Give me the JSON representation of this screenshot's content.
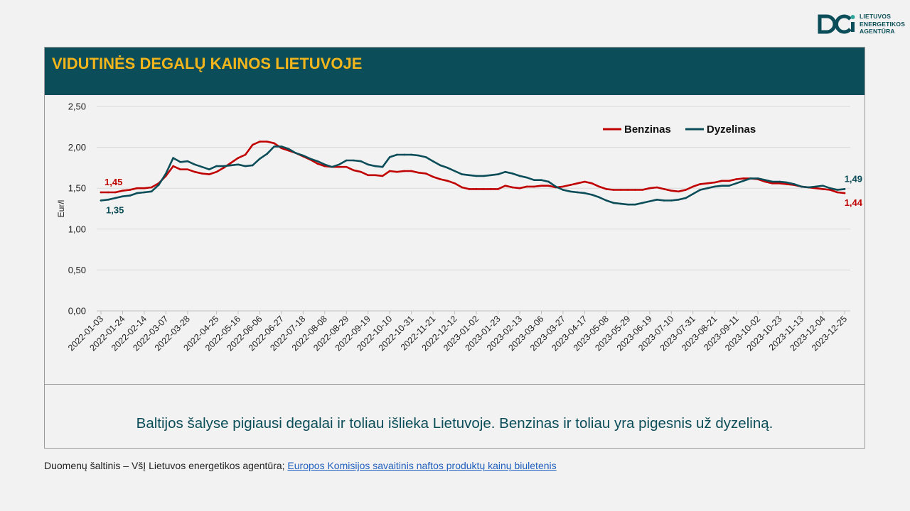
{
  "logo": {
    "lines": [
      "LIETUVOS",
      "ENERGETIKOS",
      "AGENTŪRA"
    ]
  },
  "header": {
    "title": "VIDUTINĖS DEGALŲ KAINOS LIETUVOJE"
  },
  "note": "Baltijos šalyse pigiausi degalai ir toliau išlieka Lietuvoje. Benzinas ir toliau yra pigesnis už dyzeliną.",
  "source": {
    "prefix": "Duomenų šaltinis – VšĮ Lietuvos energetikos agentūra; ",
    "link_text": "Europos Komisijos savaitinis naftos produktų kainų biuletenis"
  },
  "colors": {
    "benzinas": "#c00000",
    "dyzelinas": "#0b4d58",
    "header_bg": "#0b4d58",
    "title": "#f2b51c"
  },
  "chart_data": {
    "type": "line",
    "title": "",
    "xlabel": "",
    "ylabel": "Eur/l",
    "ylim": [
      0,
      2.5
    ],
    "yticks": [
      "0,00",
      "0,50",
      "1,00",
      "1,50",
      "2,00",
      "2,50"
    ],
    "x": [
      "2022-01-03",
      "2022-01-10",
      "2022-01-17",
      "2022-01-24",
      "2022-01-31",
      "2022-02-07",
      "2022-02-14",
      "2022-02-21",
      "2022-02-28",
      "2022-03-07",
      "2022-03-14",
      "2022-03-21",
      "2022-03-28",
      "2022-04-04",
      "2022-04-11",
      "2022-04-18",
      "2022-04-25",
      "2022-05-02",
      "2022-05-09",
      "2022-05-16",
      "2022-05-23",
      "2022-05-30",
      "2022-06-06",
      "2022-06-13",
      "2022-06-20",
      "2022-06-27",
      "2022-07-04",
      "2022-07-11",
      "2022-07-18",
      "2022-07-25",
      "2022-08-01",
      "2022-08-08",
      "2022-08-15",
      "2022-08-22",
      "2022-08-29",
      "2022-09-05",
      "2022-09-12",
      "2022-09-19",
      "2022-09-26",
      "2022-10-03",
      "2022-10-10",
      "2022-10-17",
      "2022-10-24",
      "2022-10-31",
      "2022-11-07",
      "2022-11-14",
      "2022-11-21",
      "2022-11-28",
      "2022-12-05",
      "2022-12-12",
      "2022-12-19",
      "2022-12-26",
      "2023-01-02",
      "2023-01-09",
      "2023-01-16",
      "2023-01-23",
      "2023-01-30",
      "2023-02-06",
      "2023-02-13",
      "2023-02-20",
      "2023-02-27",
      "2023-03-06",
      "2023-03-13",
      "2023-03-20",
      "2023-03-27",
      "2023-04-03",
      "2023-04-10",
      "2023-04-17",
      "2023-04-24",
      "2023-05-01",
      "2023-05-08",
      "2023-05-15",
      "2023-05-22",
      "2023-05-29",
      "2023-06-05",
      "2023-06-12",
      "2023-06-19",
      "2023-06-26",
      "2023-07-03",
      "2023-07-10",
      "2023-07-17",
      "2023-07-24",
      "2023-07-31",
      "2023-08-07",
      "2023-08-14",
      "2023-08-21",
      "2023-08-28",
      "2023-09-04",
      "2023-09-11",
      "2023-09-18",
      "2023-09-25",
      "2023-10-02",
      "2023-10-09",
      "2023-10-16",
      "2023-10-23",
      "2023-10-30",
      "2023-11-06",
      "2023-11-13",
      "2023-11-20",
      "2023-11-27",
      "2023-12-04",
      "2023-12-11",
      "2023-12-18",
      "2023-12-25"
    ],
    "xtick_labels": [
      "2022-01-03",
      "2022-01-24",
      "2022-02-14",
      "2022-03-07",
      "2022-03-28",
      "2022-04-25",
      "2022-05-16",
      "2022-06-06",
      "2022-06-27",
      "2022-07-18",
      "2022-08-08",
      "2022-08-29",
      "2022-09-19",
      "2022-10-10",
      "2022-10-31",
      "2022-11-21",
      "2022-12-12",
      "2023-01-02",
      "2023-01-23",
      "2023-02-13",
      "2023-03-06",
      "2023-03-27",
      "2023-04-17",
      "2023-05-08",
      "2023-05-29",
      "2023-06-19",
      "2023-07-10",
      "2023-07-31",
      "2023-08-21",
      "2023-09-11",
      "2023-10-02",
      "2023-10-23",
      "2023-11-13",
      "2023-12-04",
      "2023-12-25"
    ],
    "series": [
      {
        "name": "Benzinas",
        "color": "#c00000",
        "values": [
          1.45,
          1.45,
          1.45,
          1.47,
          1.48,
          1.5,
          1.5,
          1.51,
          1.56,
          1.65,
          1.77,
          1.73,
          1.73,
          1.7,
          1.68,
          1.67,
          1.7,
          1.75,
          1.81,
          1.87,
          1.91,
          2.03,
          2.07,
          2.07,
          2.05,
          1.99,
          1.96,
          1.93,
          1.89,
          1.85,
          1.8,
          1.77,
          1.76,
          1.76,
          1.76,
          1.72,
          1.7,
          1.66,
          1.66,
          1.65,
          1.71,
          1.7,
          1.71,
          1.71,
          1.69,
          1.68,
          1.64,
          1.61,
          1.59,
          1.56,
          1.51,
          1.49,
          1.49,
          1.49,
          1.49,
          1.49,
          1.53,
          1.51,
          1.5,
          1.52,
          1.52,
          1.53,
          1.53,
          1.51,
          1.52,
          1.54,
          1.56,
          1.58,
          1.56,
          1.52,
          1.49,
          1.48,
          1.48,
          1.48,
          1.48,
          1.48,
          1.5,
          1.51,
          1.49,
          1.47,
          1.46,
          1.48,
          1.52,
          1.55,
          1.56,
          1.57,
          1.59,
          1.59,
          1.61,
          1.62,
          1.62,
          1.61,
          1.58,
          1.56,
          1.56,
          1.55,
          1.54,
          1.52,
          1.51,
          1.5,
          1.49,
          1.48,
          1.45,
          1.44
        ]
      },
      {
        "name": "Dyzelinas",
        "color": "#0b4d58",
        "values": [
          1.35,
          1.36,
          1.38,
          1.4,
          1.41,
          1.44,
          1.45,
          1.46,
          1.54,
          1.68,
          1.87,
          1.82,
          1.83,
          1.79,
          1.76,
          1.73,
          1.77,
          1.77,
          1.78,
          1.79,
          1.77,
          1.78,
          1.86,
          1.92,
          2.01,
          2.01,
          1.98,
          1.93,
          1.9,
          1.86,
          1.83,
          1.79,
          1.76,
          1.79,
          1.84,
          1.84,
          1.83,
          1.79,
          1.77,
          1.76,
          1.88,
          1.91,
          1.91,
          1.91,
          1.9,
          1.88,
          1.83,
          1.78,
          1.75,
          1.71,
          1.67,
          1.66,
          1.65,
          1.65,
          1.66,
          1.67,
          1.7,
          1.68,
          1.65,
          1.63,
          1.6,
          1.6,
          1.58,
          1.52,
          1.48,
          1.46,
          1.45,
          1.44,
          1.42,
          1.39,
          1.35,
          1.32,
          1.31,
          1.3,
          1.3,
          1.32,
          1.34,
          1.36,
          1.35,
          1.35,
          1.36,
          1.38,
          1.43,
          1.48,
          1.5,
          1.52,
          1.53,
          1.53,
          1.56,
          1.59,
          1.62,
          1.62,
          1.6,
          1.58,
          1.58,
          1.57,
          1.55,
          1.52,
          1.51,
          1.52,
          1.53,
          1.5,
          1.48,
          1.49
        ]
      }
    ],
    "data_labels": [
      {
        "series": "Benzinas",
        "text": "1,45",
        "at": "start"
      },
      {
        "series": "Dyzelinas",
        "text": "1,35",
        "at": "start"
      },
      {
        "series": "Dyzelinas",
        "text": "1,49",
        "at": "end"
      },
      {
        "series": "Benzinas",
        "text": "1,44",
        "at": "end"
      }
    ],
    "legend": {
      "position": "top-right",
      "entries": [
        "Benzinas",
        "Dyzelinas"
      ]
    },
    "grid": true
  }
}
